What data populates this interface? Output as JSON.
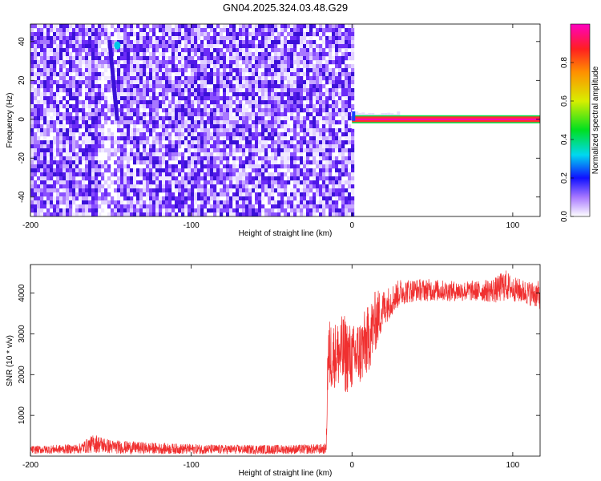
{
  "title": "GN04.2025.324.03.48.G29",
  "chart_data": [
    {
      "type": "heatmap",
      "xlabel": "Height of straight line (km)",
      "ylabel": "Frequency (Hz)",
      "xlim": [
        -200,
        117
      ],
      "ylim": [
        -50,
        49
      ],
      "xticks": [
        -200,
        -100,
        0,
        100
      ],
      "yticks": [
        -40,
        -20,
        0,
        20,
        40
      ],
      "grid": false,
      "regions": [
        {
          "x_range": [
            -200,
            0
          ],
          "description_values": {
            "noise_amplitude_range": [
              0.0,
              0.2
            ]
          }
        },
        {
          "x_range": [
            0,
            117
          ],
          "signal_frequency_hz": 0,
          "signal_amplitude": 1.0
        }
      ],
      "colorbar": {
        "label": "Normalized spectral amplitude",
        "range": [
          0,
          1
        ],
        "ticks": [
          0.0,
          0.2,
          0.4,
          0.6,
          0.8
        ]
      }
    },
    {
      "type": "line",
      "xlabel": "Height of straight line (km)",
      "ylabel": "SNR (10 * v/v)",
      "xlim": [
        -200,
        117
      ],
      "ylim": [
        0,
        4700
      ],
      "xticks": [
        -200,
        -100,
        0,
        100
      ],
      "yticks": [
        1000,
        2000,
        3000,
        4000
      ],
      "grid": false,
      "series_color": "#f03030",
      "envelope": {
        "x": [
          -200,
          -170,
          -160,
          -150,
          -120,
          -80,
          -40,
          -17,
          -16,
          -15,
          -10,
          -5,
          0,
          5,
          10,
          15,
          20,
          30,
          40,
          50,
          60,
          70,
          80,
          90,
          95,
          100,
          110,
          117
        ],
        "low": [
          60,
          60,
          80,
          60,
          50,
          50,
          50,
          50,
          100,
          1500,
          1700,
          1500,
          1600,
          1700,
          2000,
          2600,
          3200,
          3700,
          3800,
          3800,
          3800,
          3800,
          3800,
          3750,
          3800,
          3800,
          3700,
          3600
        ],
        "high": [
          250,
          300,
          550,
          400,
          320,
          280,
          280,
          300,
          300,
          3400,
          3300,
          3500,
          3200,
          3400,
          3700,
          4100,
          4100,
          4350,
          4350,
          4350,
          4300,
          4300,
          4300,
          4400,
          4600,
          4400,
          4300,
          4300
        ]
      }
    }
  ]
}
